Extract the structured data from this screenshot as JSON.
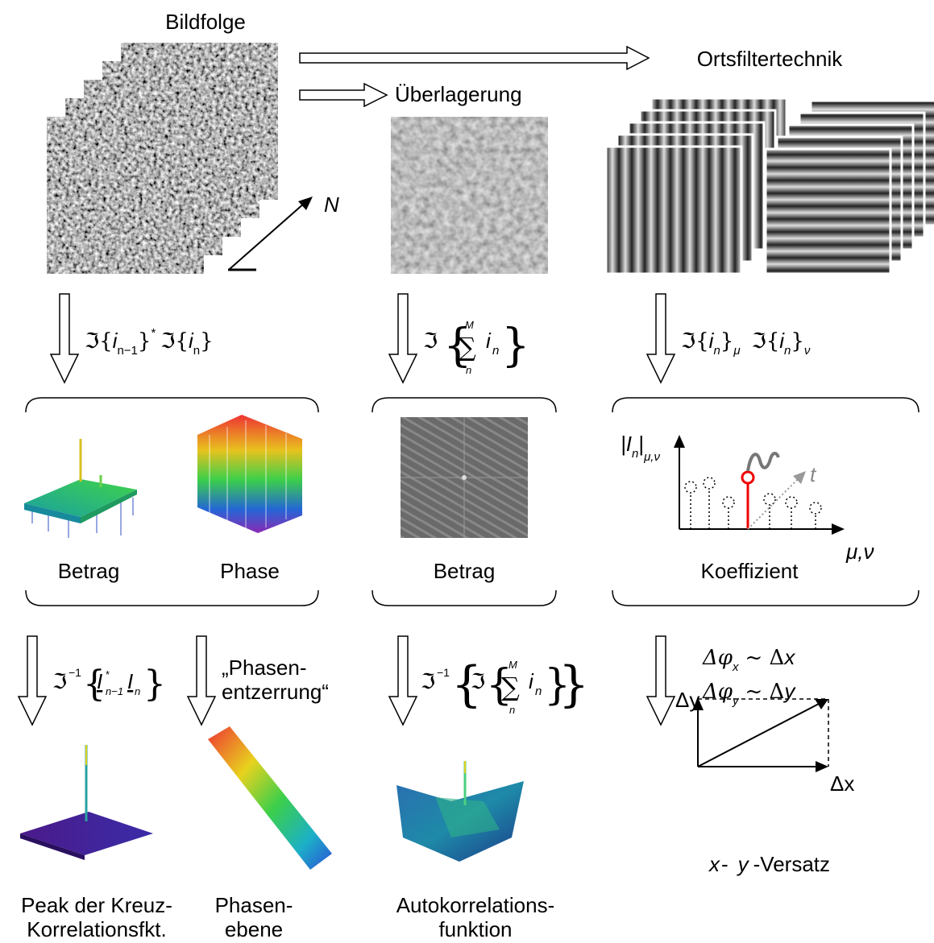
{
  "top": {
    "sequence": "Bildfolge",
    "spatial_filter": "Ortsfiltertechnik",
    "overlay": "Überlagerung",
    "axis_n": "N"
  },
  "transform_1": {
    "left": [
      "ℑ{",
      "i",
      "n−1",
      "}",
      "*",
      "ℑ{",
      "i",
      "n",
      "}"
    ],
    "middle": [
      "ℑ",
      "{",
      "M",
      "∑",
      "n",
      "i",
      "n",
      "}"
    ],
    "right": [
      "ℑ{",
      "i",
      "n",
      "}",
      "μ",
      "ℑ{",
      "i",
      "n",
      "}",
      "ν"
    ]
  },
  "results": {
    "magnitude_left": "Betrag",
    "phase": "Phase",
    "magnitude_middle": "Betrag",
    "coefficient": "Koeffizient",
    "coef_axis_y": [
      "|I",
      "n",
      "|",
      "μ,ν"
    ],
    "coef_axis_t": "t",
    "coef_axis_x": "μ,ν"
  },
  "transform_2": {
    "left": [
      "ℑ",
      "−1",
      "{",
      "I",
      "*",
      "n−1",
      "I",
      "n",
      "}"
    ],
    "phase_correction": [
      "„Phasen-",
      "entzerrung“"
    ],
    "middle": [
      "ℑ",
      "−1",
      "{",
      "ℑ",
      "{",
      "M",
      "∑",
      "n",
      "i",
      "n",
      "}",
      "}"
    ],
    "right": [
      "Δφ",
      "x",
      "~ Δ",
      "x",
      "Δφ",
      "y",
      "~ Δ",
      "y"
    ]
  },
  "outputs": {
    "cross_correlation": [
      "Peak der Kreuz-",
      "Korrelationsfkt."
    ],
    "phase_plane": [
      "Phasen-",
      "ebene"
    ],
    "autocorrelation": [
      "Autokorrelations-",
      "funktion"
    ],
    "offset": [
      "x",
      "-",
      "y",
      "-Versatz"
    ],
    "vector_dy": "Δy",
    "vector_dx": "Δx"
  }
}
